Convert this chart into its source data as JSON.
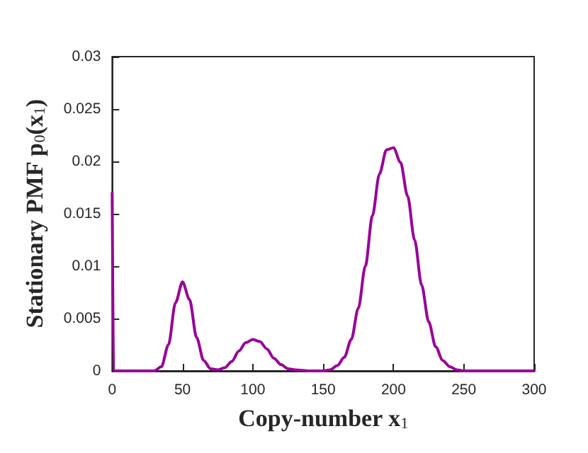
{
  "chart_data": {
    "type": "line",
    "xlabel": "Copy-number x$_{1}$",
    "ylabel": "Stationary PMF p$_{0}$(x$_{1}$)",
    "xlim": [
      0,
      300
    ],
    "xticks": [
      0,
      50,
      100,
      150,
      200,
      250,
      300
    ],
    "ylim": [
      0,
      0.03
    ],
    "yticks": [
      0,
      0.005,
      0.01,
      0.015,
      0.02,
      0.025,
      0.03
    ],
    "grid": false,
    "marker": "none",
    "line_style": "solid",
    "series": [
      {
        "color": "#990099",
        "x": [
          0,
          1,
          30,
          35,
          40,
          45,
          50,
          55,
          60,
          65,
          70,
          75,
          80,
          85,
          90,
          95,
          100,
          105,
          110,
          115,
          120,
          125,
          130,
          140,
          150,
          155,
          160,
          165,
          170,
          175,
          180,
          185,
          190,
          195,
          200,
          205,
          210,
          215,
          220,
          225,
          230,
          235,
          240,
          245,
          250,
          300
        ],
        "values": [
          0.017,
          0,
          0,
          0.0004,
          0.0025,
          0.0065,
          0.0085,
          0.0068,
          0.0032,
          0.001,
          0.0002,
          0.0001,
          0.0003,
          0.0009,
          0.0019,
          0.0027,
          0.003,
          0.0028,
          0.0021,
          0.0012,
          0.0006,
          0.0002,
          0.0001,
          0,
          0,
          0.0001,
          0.0005,
          0.0013,
          0.003,
          0.006,
          0.01,
          0.0148,
          0.0188,
          0.0211,
          0.0213,
          0.0199,
          0.0167,
          0.0125,
          0.0082,
          0.0047,
          0.0023,
          0.001,
          0.0004,
          0.0001,
          0,
          0
        ]
      }
    ]
  }
}
